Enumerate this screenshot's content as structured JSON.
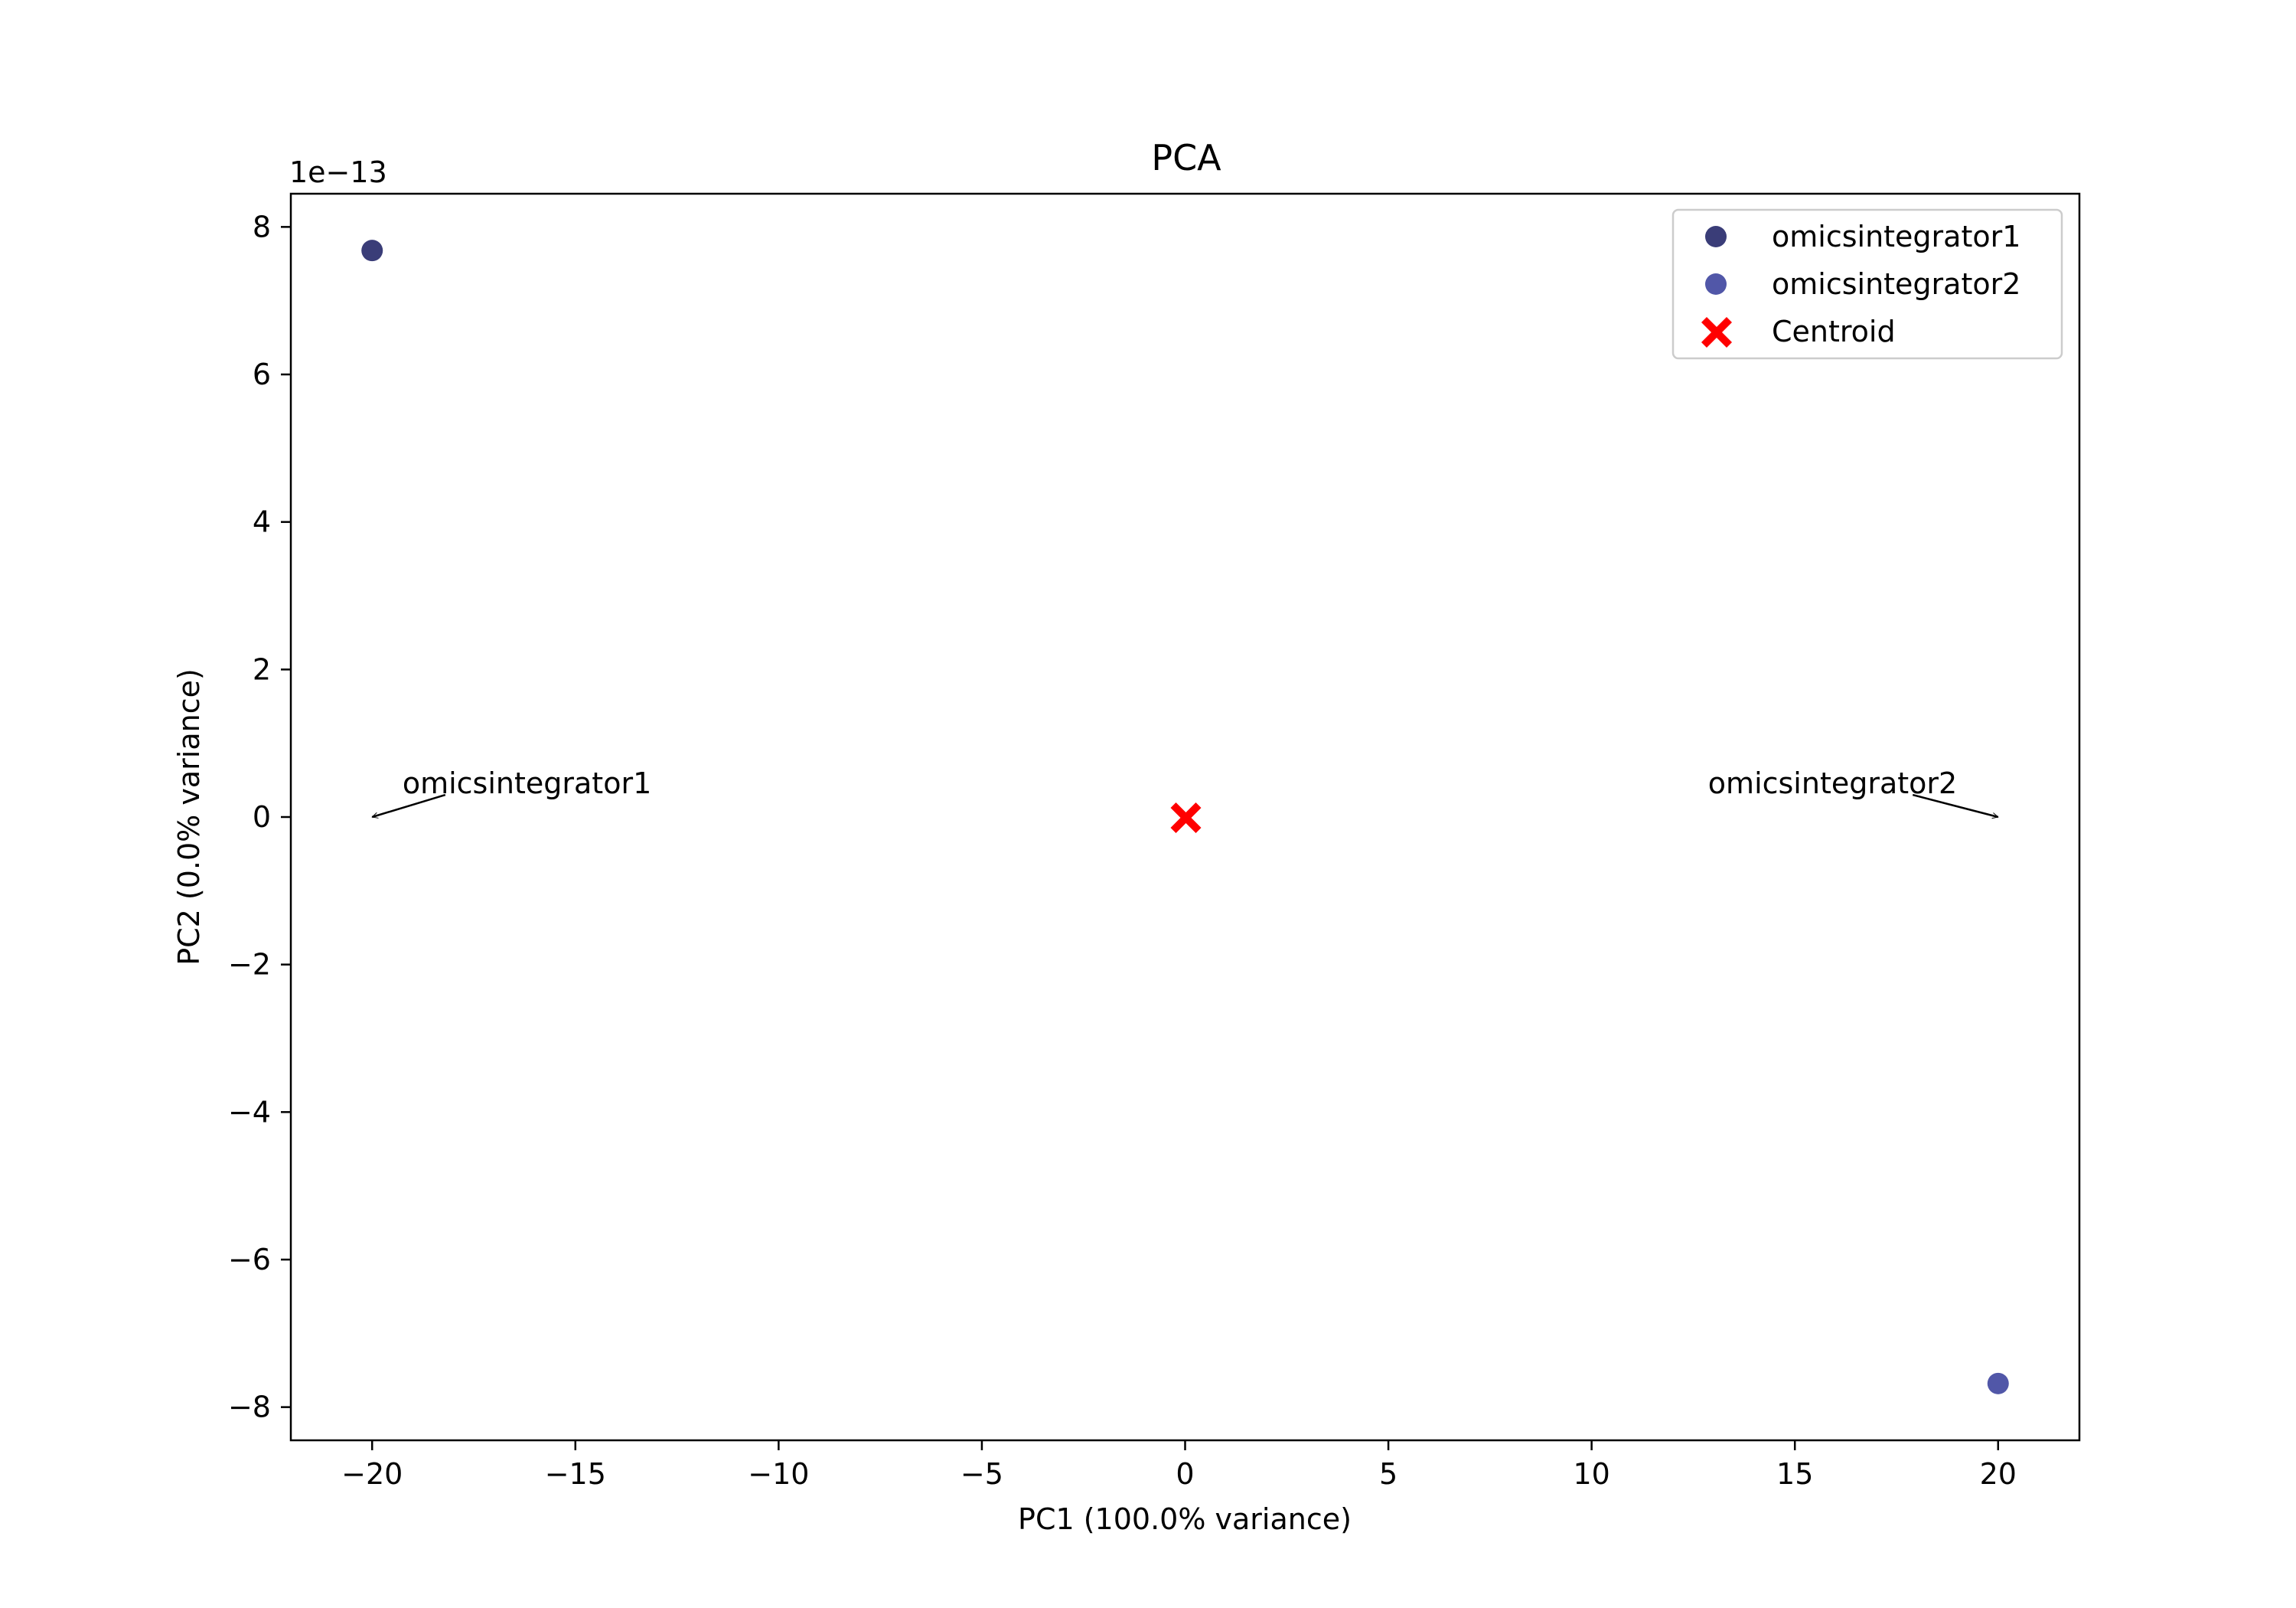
{
  "chart_data": {
    "type": "scatter",
    "title": "PCA",
    "xlabel": "PC1 (100.0% variance)",
    "ylabel": "PC2 (0.0% variance)",
    "y_offset_label": "1e−13",
    "xlim": [
      -22,
      22
    ],
    "ylim": [
      -8.45,
      8.45
    ],
    "xticks": [
      -20,
      -15,
      -10,
      -5,
      0,
      5,
      10,
      15,
      20
    ],
    "xtick_labels": [
      "−20",
      "−15",
      "−10",
      "−5",
      "0",
      "5",
      "10",
      "15",
      "20"
    ],
    "yticks": [
      -8,
      -6,
      -4,
      -2,
      0,
      2,
      4,
      6,
      8
    ],
    "ytick_labels": [
      "−8",
      "−6",
      "−4",
      "−2",
      "0",
      "2",
      "4",
      "6",
      "8"
    ],
    "grid": false,
    "legend_position": "top-right",
    "series": [
      {
        "name": "omicsintegrator1",
        "color": "#3a3d78",
        "marker": "circle",
        "points": [
          {
            "x": -20.0,
            "y": 7.68
          }
        ]
      },
      {
        "name": "omicsintegrator2",
        "color": "#5157a8",
        "marker": "circle",
        "points": [
          {
            "x": 20.0,
            "y": -7.68
          }
        ]
      },
      {
        "name": "Centroid",
        "color": "#ff0000",
        "marker": "x",
        "points": [
          {
            "x": 0.0,
            "y": 0.0
          }
        ]
      }
    ],
    "annotations": [
      {
        "text": "omicsintegrator1",
        "x": -20.0,
        "y": 0.0,
        "text_x": -18.2,
        "text_y": 0.3
      },
      {
        "text": "omicsintegrator2",
        "x": 20.0,
        "y": 0.0,
        "text_x": 17.9,
        "text_y": 0.3
      }
    ]
  }
}
